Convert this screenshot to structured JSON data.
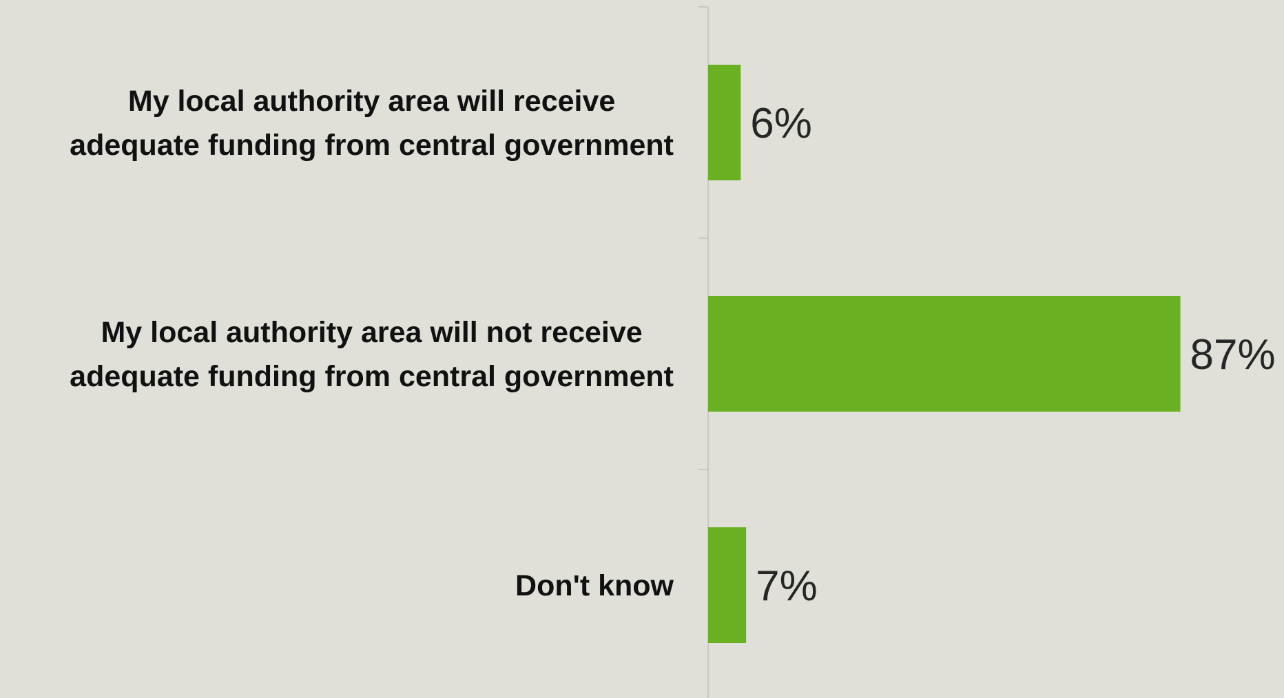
{
  "chart_data": {
    "type": "bar",
    "orientation": "horizontal",
    "categories": [
      "My local authority area will receive adequate funding from central government",
      "My local authority area will not receive adequate funding from central government",
      "Don't know"
    ],
    "category_lines": [
      [
        "My local authority area will receive",
        "adequate funding from central government"
      ],
      [
        "My local authority area will not receive",
        "adequate funding from central government"
      ],
      [
        "Don't know"
      ]
    ],
    "values": [
      6,
      87,
      7
    ],
    "value_labels": [
      "6%",
      "87%",
      "7%"
    ],
    "unit": "%",
    "xlim": [
      0,
      100
    ],
    "grid": false,
    "legend": "none",
    "colors": {
      "bar": "#6ab023",
      "axis": "#c8c8c2",
      "background": "#e0e0d9",
      "category_text": "#111111",
      "value_text": "#262626"
    }
  }
}
